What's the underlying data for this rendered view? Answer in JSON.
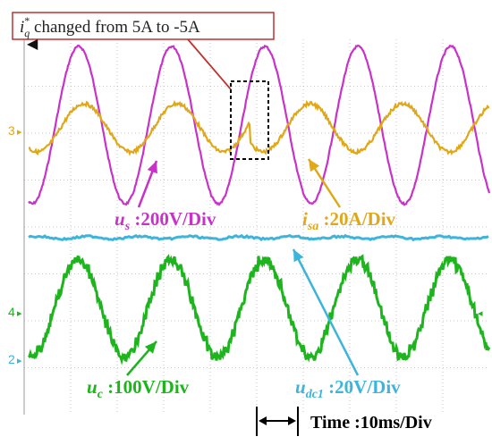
{
  "annotation": {
    "text_i": "i",
    "text_sub": "q",
    "text_sup": "*",
    "text_rest": " changed from 5A to -5A"
  },
  "channel_markers": [
    "3",
    "4",
    "2"
  ],
  "labels": {
    "us": {
      "sym": "u",
      "sub": "s",
      "scale": " :200V/Div"
    },
    "isa": {
      "sym": "i",
      "sub": "sa",
      "scale": " :20A/Div"
    },
    "uc": {
      "sym": "u",
      "sub": "c",
      "scale": " :100V/Div"
    },
    "udc1": {
      "sym": "u",
      "sub": "dc1",
      "scale": " :20V/Div"
    },
    "time": "Time :10ms/Div"
  },
  "colors": {
    "us": "#c832c8",
    "isa": "#e0a818",
    "udc1": "#3cb4dc",
    "uc": "#1eb41e",
    "annotation_border": "#c03030",
    "grid": "#b8b8b8"
  },
  "chart_data": {
    "type": "line",
    "title": "",
    "x_unit_per_div": "10ms",
    "x_divisions": 10,
    "grid": true,
    "series": [
      {
        "name": "us",
        "scale": "200V/Div",
        "waveform": "sine",
        "amplitude_div": 2.2,
        "period_div": 2.0
      },
      {
        "name": "isa",
        "scale": "20A/Div",
        "waveform": "sine",
        "amplitude_div": 0.65,
        "period_div": 2.0,
        "phase_reversal": "after current step"
      },
      {
        "name": "udc1",
        "scale": "20V/Div",
        "waveform": "dc-ripple",
        "ripple_div": 0.05
      },
      {
        "name": "uc",
        "scale": "100V/Div",
        "waveform": "stepped-sine",
        "amplitude_div": 1.3,
        "period_div": 2.0
      }
    ]
  }
}
